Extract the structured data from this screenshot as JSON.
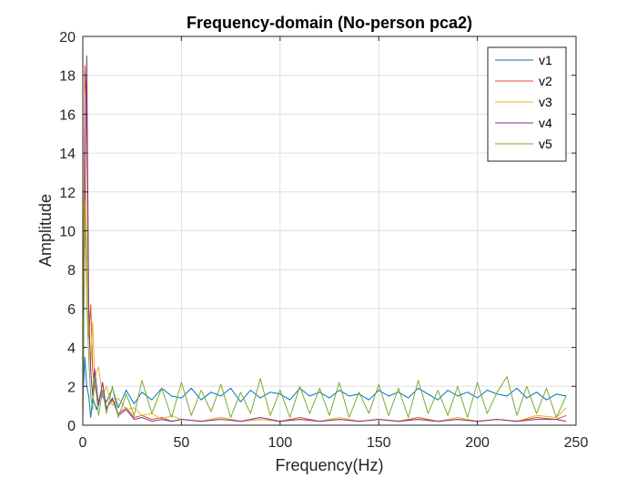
{
  "chart_data": {
    "type": "line",
    "title": "Frequency-domain (No-person pca2)",
    "xlabel": "Frequency(Hz)",
    "ylabel": "Amplitude",
    "xlim": [
      0,
      250
    ],
    "ylim": [
      0,
      20
    ],
    "xticks": [
      0,
      50,
      100,
      150,
      200,
      250
    ],
    "yticks": [
      0,
      2,
      4,
      6,
      8,
      10,
      12,
      14,
      16,
      18,
      20
    ],
    "grid": true,
    "legend_position": "top-right",
    "series": [
      {
        "name": "v1",
        "color": "#0072BD",
        "x": [
          0,
          1,
          2,
          3,
          4,
          5,
          7,
          9,
          12,
          15,
          18,
          22,
          26,
          30,
          35,
          40,
          45,
          50,
          55,
          60,
          65,
          70,
          75,
          80,
          85,
          90,
          95,
          100,
          105,
          110,
          115,
          120,
          125,
          130,
          135,
          140,
          145,
          150,
          155,
          160,
          165,
          170,
          175,
          180,
          185,
          190,
          195,
          200,
          205,
          210,
          215,
          220,
          225,
          230,
          235,
          240,
          245
        ],
        "y": [
          1.2,
          3.5,
          2.0,
          1.5,
          0.4,
          1.4,
          0.8,
          1.6,
          1.2,
          1.9,
          0.9,
          1.8,
          1.1,
          1.7,
          1.3,
          1.9,
          1.5,
          1.4,
          1.9,
          1.3,
          1.7,
          1.5,
          1.9,
          1.2,
          1.8,
          1.4,
          1.7,
          1.6,
          1.3,
          1.9,
          1.5,
          1.7,
          1.4,
          1.8,
          1.5,
          1.6,
          1.3,
          1.8,
          1.5,
          1.7,
          1.4,
          1.9,
          1.6,
          1.3,
          1.8,
          1.5,
          1.7,
          1.4,
          1.8,
          1.6,
          1.5,
          1.9,
          1.4,
          1.7,
          1.3,
          1.6,
          1.5
        ]
      },
      {
        "name": "v2",
        "color": "#D95319",
        "x": [
          0,
          1,
          2,
          3,
          4,
          5,
          6,
          8,
          10,
          12,
          15,
          18,
          22,
          26,
          30,
          35,
          40,
          45,
          50,
          60,
          70,
          80,
          90,
          100,
          110,
          120,
          130,
          140,
          150,
          160,
          170,
          180,
          190,
          200,
          210,
          220,
          230,
          240,
          245
        ],
        "y": [
          0.3,
          18.5,
          16.0,
          4.5,
          6.2,
          2.8,
          2.0,
          1.2,
          1.8,
          0.9,
          1.3,
          0.6,
          0.9,
          0.4,
          0.5,
          0.3,
          0.4,
          0.2,
          0.3,
          0.2,
          0.4,
          0.2,
          0.3,
          0.2,
          0.4,
          0.2,
          0.3,
          0.2,
          0.3,
          0.2,
          0.4,
          0.2,
          0.3,
          0.2,
          0.3,
          0.2,
          0.4,
          0.3,
          0.5
        ]
      },
      {
        "name": "v3",
        "color": "#EDB120",
        "x": [
          0,
          1,
          2,
          3,
          4,
          5,
          6,
          8,
          10,
          12,
          15,
          18,
          22,
          26,
          30,
          35,
          40,
          45,
          50,
          60,
          70,
          80,
          90,
          100,
          110,
          120,
          130,
          140,
          150,
          160,
          170,
          180,
          190,
          200,
          210,
          220,
          230,
          240,
          245
        ],
        "y": [
          0.4,
          13.0,
          9.0,
          5.0,
          3.2,
          5.3,
          2.5,
          3.0,
          1.5,
          2.0,
          1.0,
          1.4,
          0.8,
          0.9,
          0.5,
          0.6,
          0.3,
          0.5,
          0.3,
          0.2,
          0.4,
          0.2,
          0.3,
          0.2,
          0.3,
          0.2,
          0.4,
          0.2,
          0.3,
          0.2,
          0.3,
          0.2,
          0.4,
          0.2,
          0.3,
          0.2,
          0.5,
          0.4,
          0.9
        ]
      },
      {
        "name": "v4",
        "color": "#7E2F8E",
        "x": [
          0,
          1,
          2,
          3,
          4,
          5,
          6,
          8,
          10,
          12,
          15,
          18,
          22,
          26,
          30,
          35,
          40,
          45,
          50,
          60,
          70,
          80,
          90,
          100,
          110,
          120,
          130,
          140,
          150,
          160,
          170,
          180,
          190,
          200,
          210,
          220,
          230,
          240,
          245
        ],
        "y": [
          0.5,
          11.0,
          19.0,
          6.0,
          2.8,
          1.5,
          2.9,
          1.0,
          2.2,
          0.8,
          1.4,
          0.5,
          0.8,
          0.3,
          0.4,
          0.2,
          0.3,
          0.2,
          0.3,
          0.2,
          0.3,
          0.2,
          0.4,
          0.2,
          0.3,
          0.2,
          0.3,
          0.2,
          0.3,
          0.2,
          0.3,
          0.2,
          0.3,
          0.2,
          0.3,
          0.2,
          0.3,
          0.3,
          0.2
        ]
      },
      {
        "name": "v5",
        "color": "#77AC30",
        "x": [
          0,
          1,
          2,
          3,
          4,
          5,
          6,
          8,
          10,
          12,
          15,
          18,
          22,
          26,
          30,
          35,
          40,
          45,
          50,
          55,
          60,
          65,
          70,
          75,
          80,
          85,
          90,
          95,
          100,
          105,
          110,
          115,
          120,
          125,
          130,
          135,
          140,
          145,
          150,
          155,
          160,
          165,
          170,
          175,
          180,
          185,
          190,
          195,
          200,
          205,
          210,
          215,
          220,
          225,
          230,
          235,
          240,
          245
        ],
        "y": [
          0.2,
          11.5,
          6.5,
          3.5,
          1.5,
          0.8,
          2.5,
          0.5,
          1.8,
          0.6,
          2.0,
          0.4,
          1.6,
          0.5,
          2.3,
          0.6,
          1.9,
          0.4,
          2.2,
          0.5,
          1.8,
          0.7,
          2.1,
          0.4,
          1.7,
          0.6,
          2.4,
          0.5,
          1.8,
          0.4,
          2.0,
          0.6,
          1.9,
          0.5,
          2.2,
          0.4,
          1.7,
          0.6,
          2.1,
          0.5,
          1.9,
          0.4,
          2.3,
          0.6,
          1.8,
          0.5,
          2.0,
          0.4,
          2.2,
          0.6,
          1.7,
          2.5,
          0.5,
          2.0,
          0.6,
          1.9,
          0.4,
          1.5
        ]
      }
    ]
  }
}
